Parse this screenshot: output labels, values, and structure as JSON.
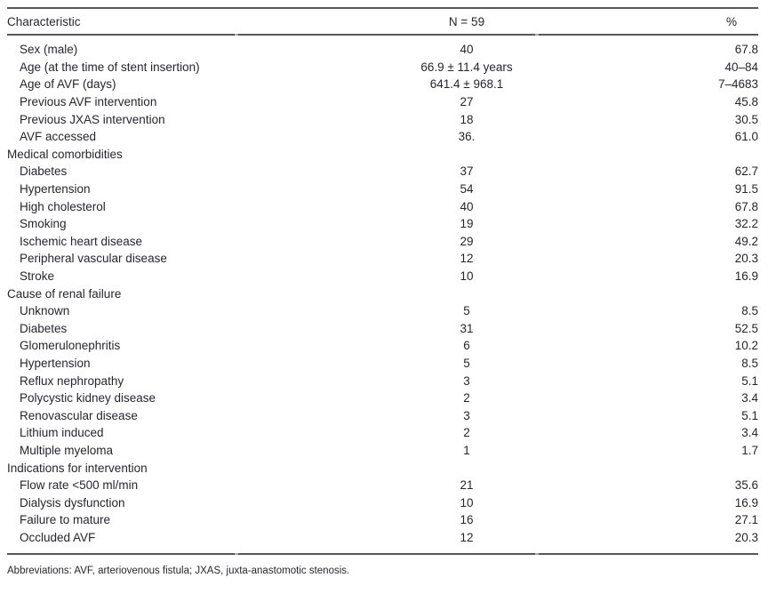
{
  "table": {
    "headers": {
      "characteristic": "Characteristic",
      "n": "N = 59",
      "percent": "%"
    },
    "rows": [
      {
        "label": "Sex (male)",
        "indent": true,
        "n": "40",
        "pct": "67.8"
      },
      {
        "label": "Age (at the time of stent insertion)",
        "indent": true,
        "n": "66.9 ± 11.4 years",
        "pct": "40–84"
      },
      {
        "label": "Age of AVF (days)",
        "indent": true,
        "n": "641.4 ± 968.1",
        "pct": "7–4683"
      },
      {
        "label": "Previous AVF intervention",
        "indent": true,
        "n": "27",
        "pct": "45.8"
      },
      {
        "label": "Previous JXAS intervention",
        "indent": true,
        "n": "18",
        "pct": "30.5"
      },
      {
        "label": "AVF accessed",
        "indent": true,
        "n": "36.",
        "pct": "61.0"
      },
      {
        "label": "Medical comorbidities",
        "indent": false,
        "n": "",
        "pct": ""
      },
      {
        "label": "Diabetes",
        "indent": true,
        "n": "37",
        "pct": "62.7"
      },
      {
        "label": "Hypertension",
        "indent": true,
        "n": "54",
        "pct": "91.5"
      },
      {
        "label": "High cholesterol",
        "indent": true,
        "n": "40",
        "pct": "67.8"
      },
      {
        "label": "Smoking",
        "indent": true,
        "n": "19",
        "pct": "32.2"
      },
      {
        "label": "Ischemic heart disease",
        "indent": true,
        "n": "29",
        "pct": "49.2"
      },
      {
        "label": "Peripheral vascular disease",
        "indent": true,
        "n": "12",
        "pct": "20.3"
      },
      {
        "label": "Stroke",
        "indent": true,
        "n": "10",
        "pct": "16.9"
      },
      {
        "label": "Cause of renal failure",
        "indent": false,
        "n": "",
        "pct": ""
      },
      {
        "label": "Unknown",
        "indent": true,
        "n": "5",
        "pct": "8.5"
      },
      {
        "label": "Diabetes",
        "indent": true,
        "n": "31",
        "pct": "52.5"
      },
      {
        "label": "Glomerulonephritis",
        "indent": true,
        "n": "6",
        "pct": "10.2"
      },
      {
        "label": "Hypertension",
        "indent": true,
        "n": "5",
        "pct": "8.5"
      },
      {
        "label": "Reflux nephropathy",
        "indent": true,
        "n": "3",
        "pct": "5.1"
      },
      {
        "label": "Polycystic kidney disease",
        "indent": true,
        "n": "2",
        "pct": "3.4"
      },
      {
        "label": "Renovascular disease",
        "indent": true,
        "n": "3",
        "pct": "5.1"
      },
      {
        "label": "Lithium induced",
        "indent": true,
        "n": "2",
        "pct": "3.4"
      },
      {
        "label": "Multiple myeloma",
        "indent": true,
        "n": "1",
        "pct": "1.7"
      },
      {
        "label": "Indications for intervention",
        "indent": false,
        "n": "",
        "pct": ""
      },
      {
        "label": "Flow rate <500 ml/min",
        "indent": true,
        "n": "21",
        "pct": "35.6"
      },
      {
        "label": "Dialysis dysfunction",
        "indent": true,
        "n": "10",
        "pct": "16.9"
      },
      {
        "label": "Failure to mature",
        "indent": true,
        "n": "16",
        "pct": "27.1"
      },
      {
        "label": "Occluded AVF",
        "indent": true,
        "n": "12",
        "pct": "20.3"
      }
    ]
  },
  "footnote": "Abbreviations: AVF, arteriovenous fistula; JXAS, juxta-anastomotic stenosis.",
  "colors": {
    "text": "#26262e",
    "rule": "#55555a",
    "background": "#ffffff"
  }
}
